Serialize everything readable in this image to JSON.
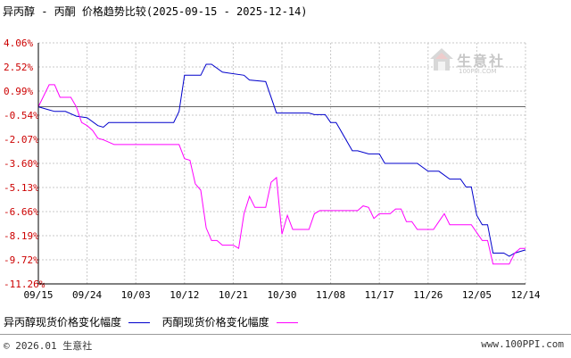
{
  "title": "异丙醇 - 丙酮 价格趋势比较(2025-09-15 - 2025-12-14)",
  "watermark": {
    "text": "生意社",
    "subtext": "100PPI.COM",
    "icon": "house-logo-icon"
  },
  "legend": [
    {
      "label": "异丙醇现货价格变化幅度",
      "color": "#0000cc"
    },
    {
      "label": "丙酮现货价格变化幅度",
      "color": "#ff00ff"
    }
  ],
  "footer": {
    "left": "© 2026.01 生意社",
    "right": "www.100PPI.com"
  },
  "colors": {
    "grid": "#c8c8c8",
    "axis": "#000000",
    "zero_line": "#666666"
  },
  "chart_data": {
    "type": "line",
    "title": "异丙醇 - 丙酮 价格趋势比较(2025-09-15 - 2025-12-14)",
    "xlabel": "",
    "ylabel": "",
    "grid": true,
    "legend_position": "bottom",
    "x_ticks": [
      "09/15",
      "09/24",
      "10/03",
      "10/12",
      "10/21",
      "10/30",
      "11/08",
      "11/17",
      "11/26",
      "12/05",
      "12/14"
    ],
    "y_ticks": [
      "4.06%",
      "2.52%",
      "0.99%",
      "-0.54%",
      "-2.07%",
      "-3.60%",
      "-5.13%",
      "-6.66%",
      "-8.19%",
      "-9.72%",
      "-11.26%"
    ],
    "ylim": [
      -11.26,
      4.06
    ],
    "x_range": [
      "2025-09-15",
      "2025-12-14"
    ],
    "series": [
      {
        "name": "异丙醇现货价格变化幅度",
        "color": "#0000cc",
        "points": [
          [
            "2025-09-15",
            0
          ],
          [
            "2025-09-17",
            -0.2
          ],
          [
            "2025-09-18",
            -0.3
          ],
          [
            "2025-09-20",
            -0.3
          ],
          [
            "2025-09-22",
            -0.6
          ],
          [
            "2025-09-24",
            -0.7
          ],
          [
            "2025-09-26",
            -1.2
          ],
          [
            "2025-09-27",
            -1.3
          ],
          [
            "2025-09-28",
            -1.0
          ],
          [
            "2025-10-10",
            -1.0
          ],
          [
            "2025-10-11",
            -0.3
          ],
          [
            "2025-10-12",
            2.0
          ],
          [
            "2025-10-15",
            2.0
          ],
          [
            "2025-10-16",
            2.7
          ],
          [
            "2025-10-17",
            2.7
          ],
          [
            "2025-10-19",
            2.2
          ],
          [
            "2025-10-23",
            2.0
          ],
          [
            "2025-10-24",
            1.7
          ],
          [
            "2025-10-27",
            1.6
          ],
          [
            "2025-10-29",
            -0.4
          ],
          [
            "2025-11-04",
            -0.4
          ],
          [
            "2025-11-05",
            -0.5
          ],
          [
            "2025-11-07",
            -0.5
          ],
          [
            "2025-11-08",
            -1.0
          ],
          [
            "2025-11-09",
            -1.0
          ],
          [
            "2025-11-12",
            -2.8
          ],
          [
            "2025-11-13",
            -2.8
          ],
          [
            "2025-11-15",
            -3.0
          ],
          [
            "2025-11-17",
            -3.0
          ],
          [
            "2025-11-18",
            -3.6
          ],
          [
            "2025-11-24",
            -3.6
          ],
          [
            "2025-11-26",
            -4.1
          ],
          [
            "2025-11-28",
            -4.1
          ],
          [
            "2025-11-30",
            -4.6
          ],
          [
            "2025-12-02",
            -4.6
          ],
          [
            "2025-12-03",
            -5.1
          ],
          [
            "2025-12-04",
            -5.1
          ],
          [
            "2025-12-05",
            -6.9
          ],
          [
            "2025-12-06",
            -7.5
          ],
          [
            "2025-12-07",
            -7.5
          ],
          [
            "2025-12-08",
            -9.3
          ],
          [
            "2025-12-10",
            -9.3
          ],
          [
            "2025-12-11",
            -9.5
          ],
          [
            "2025-12-12",
            -9.3
          ],
          [
            "2025-12-14",
            -9.1
          ]
        ]
      },
      {
        "name": "丙酮现货价格变化幅度",
        "color": "#ff00ff",
        "points": [
          [
            "2025-09-15",
            0
          ],
          [
            "2025-09-17",
            1.4
          ],
          [
            "2025-09-18",
            1.4
          ],
          [
            "2025-09-19",
            0.6
          ],
          [
            "2025-09-21",
            0.6
          ],
          [
            "2025-09-22",
            0
          ],
          [
            "2025-09-23",
            -1.0
          ],
          [
            "2025-09-24",
            -1.2
          ],
          [
            "2025-09-25",
            -1.5
          ],
          [
            "2025-09-26",
            -2.0
          ],
          [
            "2025-09-27",
            -2.1
          ],
          [
            "2025-09-29",
            -2.4
          ],
          [
            "2025-10-11",
            -2.4
          ],
          [
            "2025-10-12",
            -3.3
          ],
          [
            "2025-10-13",
            -3.4
          ],
          [
            "2025-10-14",
            -4.9
          ],
          [
            "2025-10-15",
            -5.3
          ],
          [
            "2025-10-16",
            -7.7
          ],
          [
            "2025-10-17",
            -8.5
          ],
          [
            "2025-10-18",
            -8.5
          ],
          [
            "2025-10-19",
            -8.8
          ],
          [
            "2025-10-21",
            -8.8
          ],
          [
            "2025-10-22",
            -9.0
          ],
          [
            "2025-10-23",
            -6.8
          ],
          [
            "2025-10-24",
            -5.7
          ],
          [
            "2025-10-25",
            -6.4
          ],
          [
            "2025-10-27",
            -6.4
          ],
          [
            "2025-10-28",
            -4.8
          ],
          [
            "2025-10-29",
            -4.5
          ],
          [
            "2025-10-30",
            -8.1
          ],
          [
            "2025-10-31",
            -6.9
          ],
          [
            "2025-11-01",
            -7.8
          ],
          [
            "2025-11-04",
            -7.8
          ],
          [
            "2025-11-05",
            -6.8
          ],
          [
            "2025-11-06",
            -6.6
          ],
          [
            "2025-11-13",
            -6.6
          ],
          [
            "2025-11-14",
            -6.3
          ],
          [
            "2025-11-15",
            -6.4
          ],
          [
            "2025-11-16",
            -7.1
          ],
          [
            "2025-11-17",
            -6.8
          ],
          [
            "2025-11-19",
            -6.8
          ],
          [
            "2025-11-20",
            -6.5
          ],
          [
            "2025-11-21",
            -6.5
          ],
          [
            "2025-11-22",
            -7.3
          ],
          [
            "2025-11-23",
            -7.3
          ],
          [
            "2025-11-24",
            -7.8
          ],
          [
            "2025-11-27",
            -7.8
          ],
          [
            "2025-11-28",
            -7.3
          ],
          [
            "2025-11-29",
            -6.8
          ],
          [
            "2025-11-30",
            -7.5
          ],
          [
            "2025-12-04",
            -7.5
          ],
          [
            "2025-12-06",
            -8.5
          ],
          [
            "2025-12-07",
            -8.5
          ],
          [
            "2025-12-08",
            -10.0
          ],
          [
            "2025-12-11",
            -10.0
          ],
          [
            "2025-12-12",
            -9.3
          ],
          [
            "2025-12-13",
            -9.0
          ],
          [
            "2025-12-14",
            -9.0
          ]
        ]
      }
    ]
  }
}
